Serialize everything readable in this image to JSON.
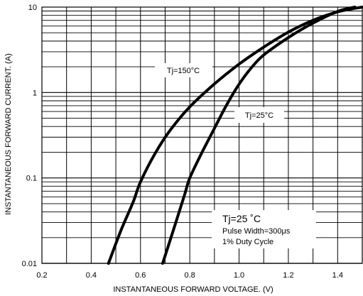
{
  "chart_data": {
    "type": "line",
    "title": "",
    "xlabel": "INSTANTANEOUS FORWARD VOLTAGE. (V)",
    "ylabel": "INSTANTANEOUS FORWARD CURRENT. (A)",
    "x_scale": "linear",
    "y_scale": "log",
    "xlim": [
      0.2,
      1.5
    ],
    "ylim": [
      0.01,
      10
    ],
    "x_ticks": [
      "0.2",
      "0.4",
      "0.6",
      "0.8",
      "1.0",
      "1.2",
      "1.4"
    ],
    "y_ticks": [
      "0.01",
      "0.1",
      "1",
      "10"
    ],
    "grid": true,
    "series": [
      {
        "name": "Tj=150°C",
        "x": [
          0.47,
          0.52,
          0.57,
          0.6,
          0.66,
          0.72,
          0.8,
          0.9,
          1.0,
          1.1,
          1.2,
          1.3,
          1.4,
          1.5
        ],
        "y": [
          0.01,
          0.024,
          0.052,
          0.09,
          0.195,
          0.36,
          0.68,
          1.26,
          2.15,
          3.4,
          5.1,
          7.0,
          8.8,
          10.0
        ]
      },
      {
        "name": "Tj=25°C",
        "x": [
          0.69,
          0.74,
          0.78,
          0.8,
          0.85,
          0.9,
          0.95,
          1.0,
          1.05,
          1.1,
          1.2,
          1.3,
          1.4,
          1.47
        ],
        "y": [
          0.01,
          0.028,
          0.065,
          0.1,
          0.2,
          0.38,
          0.72,
          1.25,
          1.95,
          2.75,
          4.4,
          6.5,
          8.9,
          10.0
        ]
      }
    ],
    "annotations": {
      "test_condition_title": "Tj=25 ˚C",
      "test_condition_line1": "Pulse Width=300μs",
      "test_condition_line2": "1% Duty Cycle"
    },
    "colors": {
      "curve": "#000000",
      "grid": "#000000",
      "background": "#ffffff"
    }
  }
}
